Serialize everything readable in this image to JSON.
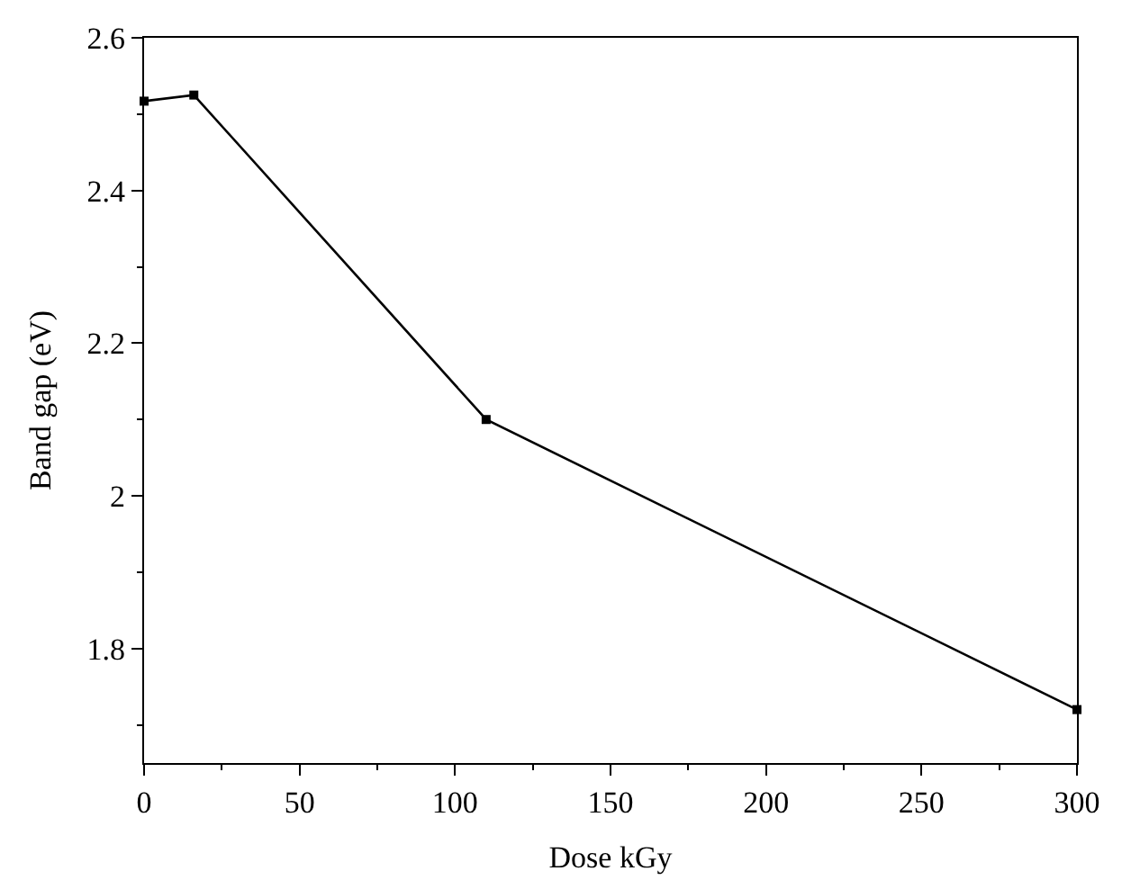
{
  "chart_data": {
    "type": "line",
    "xlabel": "Dose kGy",
    "ylabel": "Band gap (eV)",
    "x": [
      0,
      16,
      110,
      300
    ],
    "series": [
      {
        "color": "#000000",
        "values": [
          2.517,
          2.525,
          2.1,
          1.72
        ]
      }
    ],
    "xlim": [
      0,
      300
    ],
    "xticks": [
      0,
      50,
      100,
      150,
      200,
      250,
      300
    ],
    "ylim": [
      1.65,
      2.6
    ],
    "yticks": [
      1.8,
      2,
      2.2,
      2.4,
      2.6
    ],
    "legend": false,
    "marker": "square",
    "line_style": "solid"
  }
}
